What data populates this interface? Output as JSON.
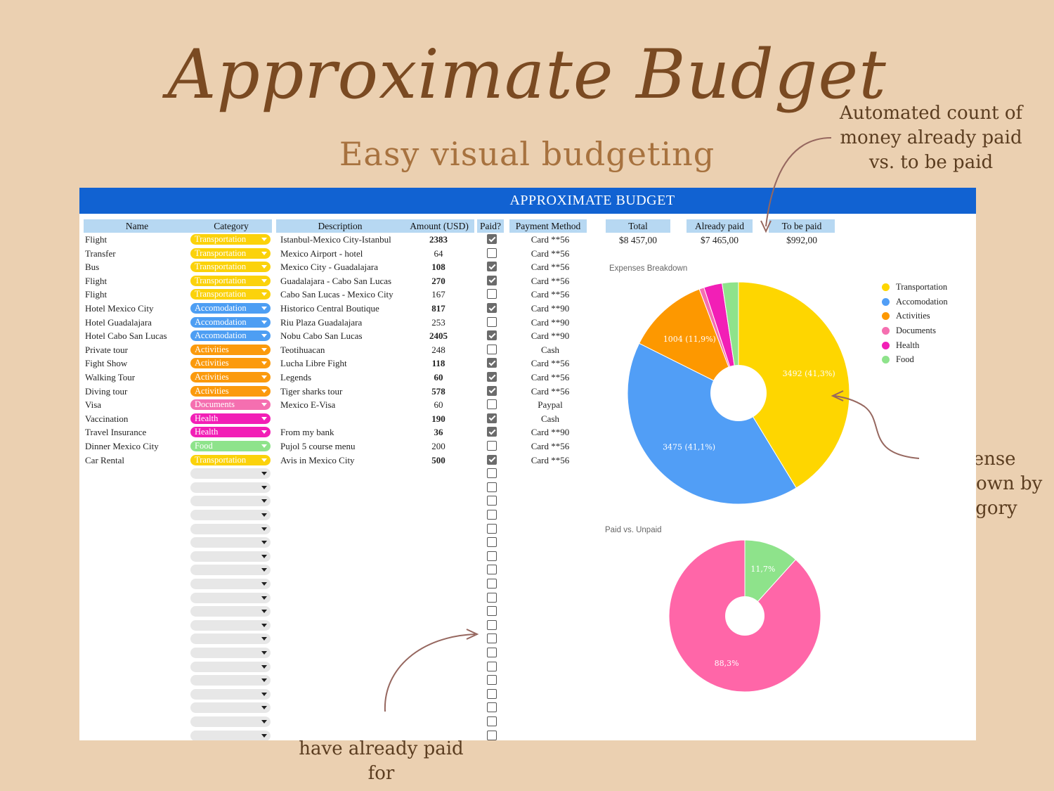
{
  "hero": {
    "title": "Approximate Budget",
    "subtitle": "Easy visual budgeting"
  },
  "notes": {
    "paid_count": "Automated count of money already paid vs. to be paid",
    "breakdown": "Expense breakdown by category",
    "tick": "Tick off what you have already paid for"
  },
  "sheet": {
    "banner": "APPROXIMATE BUDGET",
    "columns": {
      "name": "Name",
      "category": "Category",
      "description": "Description",
      "amount": "Amount (USD)",
      "paid": "Paid?",
      "payment": "Payment Method"
    },
    "category_colors": {
      "Transportation": "#fbd20b",
      "Accomodation": "#4d9ef3",
      "Activities": "#fb9a0d",
      "Documents": "#f56fb0",
      "Health": "#f21fb6",
      "Food": "#8ee38b"
    },
    "rows": [
      {
        "name": "Flight",
        "category": "Transportation",
        "description": "Istanbul-Mexico City-Istanbul",
        "amount": "2383",
        "bold": true,
        "paid": true,
        "payment": "Card **56"
      },
      {
        "name": "Transfer",
        "category": "Transportation",
        "description": "Mexico Airport - hotel",
        "amount": "64",
        "bold": false,
        "paid": false,
        "payment": "Card **56"
      },
      {
        "name": "Bus",
        "category": "Transportation",
        "description": "Mexico City - Guadalajara",
        "amount": "108",
        "bold": true,
        "paid": true,
        "payment": "Card **56"
      },
      {
        "name": "Flight",
        "category": "Transportation",
        "description": "Guadalajara - Cabo San Lucas",
        "amount": "270",
        "bold": true,
        "paid": true,
        "payment": "Card **56"
      },
      {
        "name": "Flight",
        "category": "Transportation",
        "description": "Cabo San Lucas - Mexico City",
        "amount": "167",
        "bold": false,
        "paid": false,
        "payment": "Card **56"
      },
      {
        "name": "Hotel Mexico City",
        "category": "Accomodation",
        "description": "Historico Central Boutique",
        "amount": "817",
        "bold": true,
        "paid": true,
        "payment": "Card **90"
      },
      {
        "name": "Hotel Guadalajara",
        "category": "Accomodation",
        "description": "Riu Plaza Guadalajara",
        "amount": "253",
        "bold": false,
        "paid": false,
        "payment": "Card **90"
      },
      {
        "name": "Hotel Cabo San Lucas",
        "category": "Accomodation",
        "description": "Nobu Cabo San Lucas",
        "amount": "2405",
        "bold": true,
        "paid": true,
        "payment": "Card **90"
      },
      {
        "name": "Private tour",
        "category": "Activities",
        "description": "Teotihuacan",
        "amount": "248",
        "bold": false,
        "paid": false,
        "payment": "Cash"
      },
      {
        "name": "Fight Show",
        "category": "Activities",
        "description": "Lucha Libre Fight",
        "amount": "118",
        "bold": true,
        "paid": true,
        "payment": "Card **56"
      },
      {
        "name": "Walking Tour",
        "category": "Activities",
        "description": "Legends",
        "amount": "60",
        "bold": true,
        "paid": true,
        "payment": "Card **56"
      },
      {
        "name": "Diving tour",
        "category": "Activities",
        "description": "Tiger sharks tour",
        "amount": "578",
        "bold": true,
        "paid": true,
        "payment": "Card **56"
      },
      {
        "name": "Visa",
        "category": "Documents",
        "description": "Mexico E-Visa",
        "amount": "60",
        "bold": false,
        "paid": false,
        "payment": "Paypal"
      },
      {
        "name": "Vaccination",
        "category": "Health",
        "description": "",
        "amount": "190",
        "bold": true,
        "paid": true,
        "payment": "Cash"
      },
      {
        "name": "Travel Insurance",
        "category": "Health",
        "description": "From my bank",
        "amount": "36",
        "bold": true,
        "paid": true,
        "payment": "Card **90"
      },
      {
        "name": "Dinner Mexico City",
        "category": "Food",
        "description": "Pujol 5 course menu",
        "amount": "200",
        "bold": false,
        "paid": false,
        "payment": "Card **56"
      },
      {
        "name": "Car Rental",
        "category": "Transportation",
        "description": "Avis in Mexico City",
        "amount": "500",
        "bold": true,
        "paid": true,
        "payment": "Card **56"
      }
    ],
    "empty_rows": 20,
    "summary": {
      "total_label": "Total",
      "total_value": "$8 457,00",
      "paid_label": "Already paid",
      "paid_value": "$7 465,00",
      "unpaid_label": "To be paid",
      "unpaid_value": "$992,00"
    }
  },
  "chart_data": [
    {
      "type": "pie",
      "title": "Expenses Breakdown",
      "legend_position": "right",
      "categories": [
        "Transportation",
        "Accomodation",
        "Activities",
        "Documents",
        "Health",
        "Food"
      ],
      "values": [
        3492,
        3475,
        1004,
        60,
        226,
        200
      ],
      "colors": [
        "#fed600",
        "#519ef6",
        "#fd9800",
        "#f56fb0",
        "#f21fb6",
        "#8ee38b"
      ],
      "data_labels": [
        "3492 (41,3%)",
        "3475 (41,1%)",
        "1004 (11,9%)",
        "",
        "",
        ""
      ]
    },
    {
      "type": "pie",
      "title": "Paid vs. Unpaid",
      "categories": [
        "Unpaid",
        "Paid"
      ],
      "values": [
        11.7,
        88.3
      ],
      "colors": [
        "#8ee38b",
        "#ff66a8"
      ],
      "data_labels": [
        "11,7%",
        "88,3%"
      ]
    }
  ]
}
